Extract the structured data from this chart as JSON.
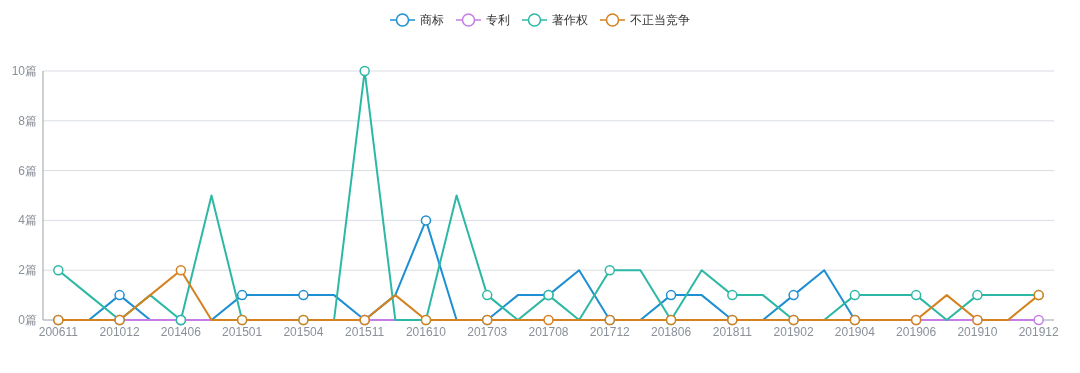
{
  "chart_data": {
    "type": "line",
    "categories": [
      "200611",
      null,
      "201012",
      null,
      "201406",
      null,
      "201501",
      null,
      "201504",
      null,
      "201511",
      null,
      "201610",
      null,
      "201703",
      null,
      "201708",
      null,
      "201712",
      null,
      "201806",
      null,
      "201811",
      null,
      "201902",
      null,
      "201904",
      null,
      "201906",
      null,
      "201910",
      null,
      "201912"
    ],
    "series": [
      {
        "name": "商标",
        "color": "#1e8fd2",
        "values": [
          0,
          0,
          1,
          0,
          0,
          0,
          1,
          1,
          1,
          1,
          0,
          1,
          4,
          0,
          0,
          1,
          1,
          2,
          0,
          0,
          1,
          1,
          0,
          0,
          1,
          2,
          0,
          null,
          null,
          null,
          null,
          null,
          null
        ]
      },
      {
        "name": "专利",
        "color": "#c47ee6",
        "values": [
          null,
          null,
          0,
          0,
          0,
          0,
          null,
          null,
          null,
          null,
          0,
          0,
          null,
          null,
          null,
          null,
          null,
          null,
          null,
          null,
          null,
          null,
          null,
          null,
          null,
          null,
          null,
          null,
          0,
          0,
          0,
          0,
          0
        ]
      },
      {
        "name": "著作权",
        "color": "#2db8a5",
        "values": [
          2,
          1,
          0,
          1,
          0,
          5,
          0,
          0,
          0,
          0,
          10,
          0,
          0,
          5,
          1,
          0,
          1,
          0,
          2,
          2,
          0,
          2,
          1,
          1,
          0,
          0,
          1,
          1,
          1,
          0,
          1,
          1,
          1
        ]
      },
      {
        "name": "不正当竞争",
        "color": "#d4821f",
        "values": [
          0,
          0,
          0,
          1,
          2,
          0,
          0,
          0,
          0,
          0,
          0,
          1,
          0,
          0,
          0,
          0,
          0,
          0,
          0,
          0,
          0,
          0,
          0,
          0,
          0,
          0,
          0,
          0,
          0,
          1,
          0,
          0,
          1
        ]
      }
    ],
    "ylim": [
      0,
      10
    ],
    "yticks": [
      {
        "value": 0,
        "label": "0篇"
      },
      {
        "value": 2,
        "label": "2篇"
      },
      {
        "value": 4,
        "label": "4篇"
      },
      {
        "value": 6,
        "label": "6篇"
      },
      {
        "value": 8,
        "label": "8篇"
      },
      {
        "value": 10,
        "label": "10篇"
      }
    ],
    "grid": "y",
    "legend": "top",
    "marker": "circle",
    "line_style": "solid"
  }
}
